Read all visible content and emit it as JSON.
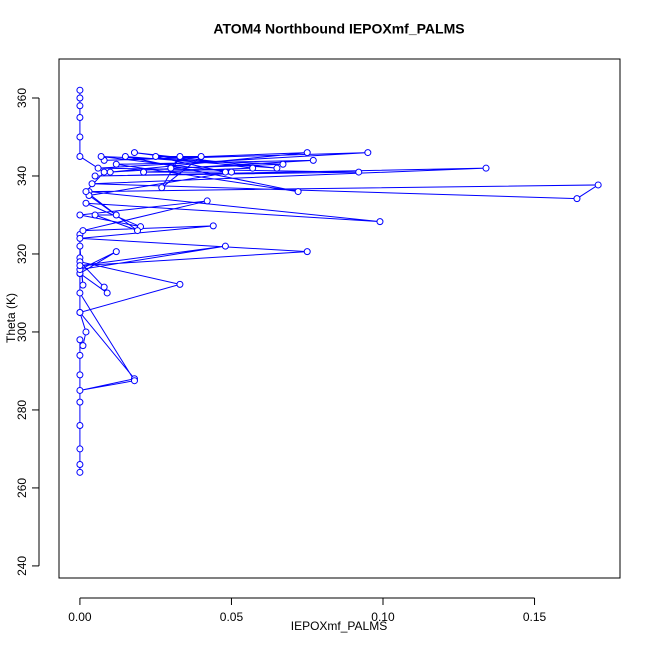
{
  "chart_data": {
    "type": "line-points",
    "title": "ATOM4 Northbound IEPOXmf_PALMS",
    "x_label": "IEPOXmf_PALMS",
    "y_label": "Theta (K)",
    "color": "#0000ff",
    "xlim": [
      -0.0069,
      0.1782
    ],
    "ylim": [
      236.9,
      370
    ],
    "xticks": [
      {
        "value": 0,
        "label": "0.00"
      },
      {
        "value": 0.05,
        "label": "0.05"
      },
      {
        "value": 0.1,
        "label": "0.10"
      },
      {
        "value": 0.15,
        "label": "0.15"
      }
    ],
    "yticks": [
      240,
      260,
      280,
      300,
      320,
      340,
      360
    ],
    "x": [
      0,
      0,
      0,
      0,
      0,
      0,
      0,
      0,
      0.001,
      0.002,
      0,
      0.018,
      0,
      0.018,
      0,
      0,
      0,
      0.001,
      0,
      0,
      0,
      0.033,
      0,
      0.008,
      0.009,
      0,
      0.012,
      0,
      0.048,
      0,
      0.075,
      0,
      0.044,
      0.001,
      0.042,
      0,
      0.02,
      0.002,
      0.099,
      0.003,
      0.171,
      0.164,
      0.004,
      0.134,
      0.005,
      0.092,
      0.006,
      0.095,
      0.008,
      0.075,
      0.01,
      0.077,
      0.012,
      0.072,
      0.015,
      0.065,
      0.018,
      0.057,
      0.021,
      0.048,
      0.025,
      0.04,
      0.027,
      0.033,
      0.03,
      0.067,
      0.007,
      0.05,
      0.003,
      0.019,
      0.005,
      0.012,
      0.002,
      0.008,
      0,
      0,
      0,
      0,
      0,
      0
    ],
    "values": [
      264,
      266,
      270,
      276,
      282,
      289,
      294,
      298,
      296.5,
      300,
      305,
      288,
      285,
      287.5,
      310,
      315,
      319,
      312,
      322,
      325,
      305,
      312.2,
      318,
      311.5,
      310,
      315,
      320.6,
      316,
      322,
      317,
      320.6,
      324,
      327.2,
      326,
      333.6,
      330,
      327,
      333,
      328.3,
      336,
      337.7,
      334.2,
      338,
      342,
      340,
      341,
      342,
      346,
      344,
      346,
      341,
      344,
      343,
      336,
      345,
      342,
      346,
      342,
      341,
      341,
      345,
      345,
      337,
      345,
      342,
      343,
      345,
      341,
      335,
      326,
      330,
      330,
      336,
      341,
      345,
      350,
      355,
      358,
      360,
      362
    ]
  }
}
